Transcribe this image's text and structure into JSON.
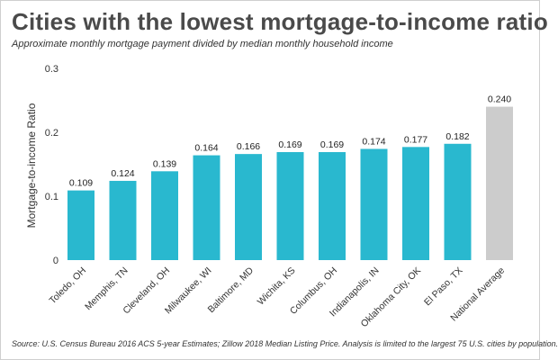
{
  "title": "Cities with the lowest mortgage-to-income ratio",
  "subtitle": "Approximate monthly mortgage payment divided by median monthly household income",
  "source": "Source: U.S. Census Bureau 2016 ACS 5-year Estimates; Zillow 2018 Median Listing Price. Analysis is limited to the largest 75 U.S. cities by population.",
  "chart_data": {
    "type": "bar",
    "categories": [
      "Toledo, OH",
      "Memphis, TN",
      "Cleveland, OH",
      "Milwaukee, WI",
      "Baltimore, MD",
      "Wichita, KS",
      "Columbus, OH",
      "Indianapolis, IN",
      "Oklahoma City, OK",
      "El Paso, TX",
      "National Average"
    ],
    "values": [
      0.109,
      0.124,
      0.139,
      0.164,
      0.166,
      0.169,
      0.169,
      0.174,
      0.177,
      0.182,
      0.24
    ],
    "value_labels": [
      "0.109",
      "0.124",
      "0.139",
      "0.164",
      "0.166",
      "0.169",
      "0.169",
      "0.174",
      "0.177",
      "0.182",
      "0.240"
    ],
    "ylabel": "Mortgage-to-income Ratio",
    "ylim": [
      0,
      0.3
    ],
    "yticks": [
      0,
      0.1,
      0.2,
      0.3
    ],
    "ytick_labels": [
      "0",
      "0.1",
      "0.2",
      "0.3"
    ],
    "grid": false,
    "colors": {
      "bar": "#29b8cf",
      "highlight_bar": "#cccccc",
      "title": "#4a4a4a",
      "text": "#222222"
    },
    "highlight_category": "National Average"
  }
}
